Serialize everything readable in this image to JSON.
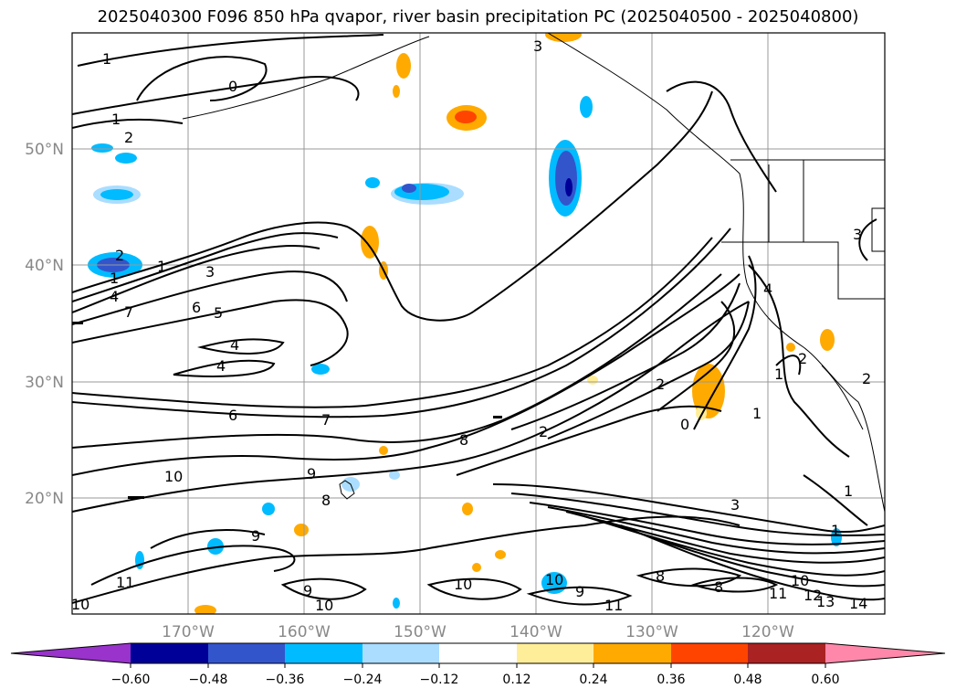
{
  "title": "2025040300 F096 850 hPa qvapor, river basin precipitation PC (2025040500 - 2025040800)",
  "map": {
    "lat_labels": [
      "50°N",
      "40°N",
      "30°N",
      "20°N"
    ],
    "lon_labels": [
      "170°W",
      "160°W",
      "150°W",
      "140°W",
      "130°W",
      "120°W"
    ],
    "contour_labels": [
      "1",
      "0",
      "1",
      "2",
      "3",
      "3",
      "2",
      "1",
      "1",
      "4",
      "7",
      "6",
      "5",
      "4",
      "4",
      "6",
      "7",
      "8",
      "9",
      "10",
      "8",
      "9",
      "9",
      "10",
      "11",
      "10",
      "10",
      "10",
      "9",
      "8",
      "8",
      "11",
      "10",
      "11",
      "12",
      "13",
      "14",
      "2",
      "0",
      "3",
      "2",
      "4",
      "3",
      "1",
      "1",
      "2",
      "2",
      "1",
      "1"
    ]
  },
  "colorbar": {
    "colors": [
      "#9933cc",
      "#000099",
      "#3355cc",
      "#00bbff",
      "#aaddff",
      "#ffffff",
      "#ffee99",
      "#ffaa00",
      "#ff4400",
      "#aa2222",
      "#ff88aa"
    ],
    "tick_labels": [
      "−0.60",
      "−0.48",
      "−0.36",
      "−0.24",
      "−0.12",
      "0.12",
      "0.24",
      "0.36",
      "0.48",
      "0.60"
    ]
  }
}
